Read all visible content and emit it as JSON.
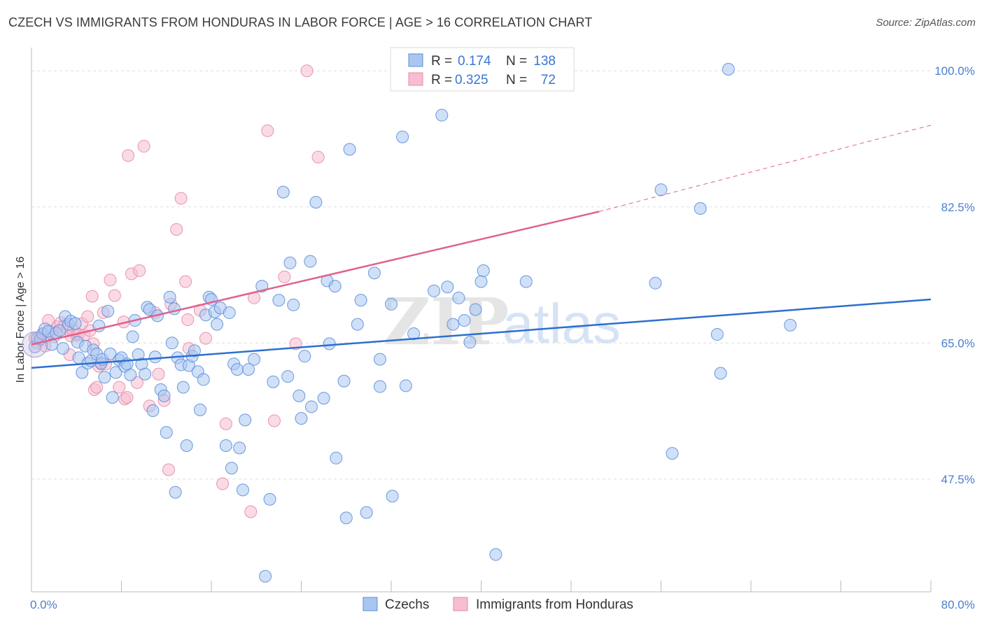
{
  "title": "CZECH VS IMMIGRANTS FROM HONDURAS IN LABOR FORCE | AGE > 16 CORRELATION CHART",
  "source": "Source: ZipAtlas.com",
  "watermark": {
    "zip": "ZIP",
    "atlas": "atlas"
  },
  "colors": {
    "blue_fill": "#a9c6f0",
    "blue_stroke": "#5b8fdb",
    "blue_line": "#2c6fce",
    "pink_fill": "#f6bed0",
    "pink_stroke": "#e68aa8",
    "pink_line": "#e0618d",
    "grid": "#dddddd",
    "axis_text": "#4a7fd0"
  },
  "stats_legend": {
    "rows": [
      {
        "r_label": "R =",
        "r_value": "0.174",
        "n_label": "N =",
        "n_value": "138",
        "series": "czechs"
      },
      {
        "r_label": "R =",
        "r_value": "0.325",
        "n_label": "N =",
        "n_value": "72",
        "series": "honduras"
      }
    ]
  },
  "chart_data": {
    "type": "scatter",
    "title": "CZECH VS IMMIGRANTS FROM HONDURAS IN LABOR FORCE | AGE > 16 CORRELATION CHART",
    "xlabel": "",
    "ylabel": "In Labor Force | Age > 16",
    "xlim": [
      0,
      80
    ],
    "ylim": [
      33,
      102
    ],
    "x_tick_labels": [
      "0.0%",
      "80.0%"
    ],
    "y_ticks": [
      47.5,
      65.0,
      82.5,
      100.0
    ],
    "y_tick_labels": [
      "47.5%",
      "65.0%",
      "82.5%",
      "100.0%"
    ],
    "grid": true,
    "legend_position": "bottom",
    "series": [
      {
        "name": "Czechs",
        "color": "#5b8fdb",
        "trend": {
          "x": [
            0,
            80
          ],
          "y": [
            61.8,
            70.6
          ]
        },
        "points": [
          [
            0.3,
            64.5
          ],
          [
            0.5,
            65.6
          ],
          [
            0.8,
            65.5
          ],
          [
            1.0,
            66.2
          ],
          [
            1.2,
            66.8
          ],
          [
            1.5,
            66.5
          ],
          [
            1.8,
            64.8
          ],
          [
            2.2,
            66.3
          ],
          [
            2.5,
            66.6
          ],
          [
            2.8,
            64.3
          ],
          [
            3.0,
            68.4
          ],
          [
            3.3,
            67.4
          ],
          [
            3.5,
            67.8
          ],
          [
            3.9,
            67.5
          ],
          [
            4.1,
            65.1
          ],
          [
            4.2,
            63.1
          ],
          [
            4.5,
            61.2
          ],
          [
            4.8,
            64.6
          ],
          [
            5.0,
            62.4
          ],
          [
            5.3,
            62.7
          ],
          [
            5.5,
            64.1
          ],
          [
            5.8,
            63.6
          ],
          [
            6.0,
            67.2
          ],
          [
            6.2,
            62.4
          ],
          [
            6.3,
            62.9
          ],
          [
            6.5,
            60.6
          ],
          [
            6.8,
            69.1
          ],
          [
            7.0,
            63.6
          ],
          [
            7.2,
            58.0
          ],
          [
            7.5,
            61.2
          ],
          [
            7.8,
            62.8
          ],
          [
            8.0,
            63.1
          ],
          [
            8.3,
            62.0
          ],
          [
            8.5,
            62.3
          ],
          [
            8.8,
            60.9
          ],
          [
            9.0,
            65.8
          ],
          [
            9.2,
            67.9
          ],
          [
            9.5,
            63.5
          ],
          [
            9.8,
            62.3
          ],
          [
            10.1,
            61.0
          ],
          [
            10.3,
            69.6
          ],
          [
            10.5,
            69.3
          ],
          [
            10.8,
            56.3
          ],
          [
            11.0,
            63.2
          ],
          [
            11.2,
            68.5
          ],
          [
            11.5,
            59.0
          ],
          [
            11.8,
            58.2
          ],
          [
            12.0,
            53.5
          ],
          [
            12.3,
            70.9
          ],
          [
            12.5,
            65.0
          ],
          [
            12.7,
            69.4
          ],
          [
            12.8,
            45.8
          ],
          [
            13.0,
            63.1
          ],
          [
            13.3,
            62.2
          ],
          [
            13.5,
            59.3
          ],
          [
            13.8,
            51.8
          ],
          [
            14.0,
            62.1
          ],
          [
            14.3,
            63.3
          ],
          [
            14.5,
            64.0
          ],
          [
            14.8,
            61.3
          ],
          [
            15.0,
            56.4
          ],
          [
            15.3,
            60.3
          ],
          [
            15.5,
            68.6
          ],
          [
            15.8,
            70.9
          ],
          [
            16.0,
            70.6
          ],
          [
            16.3,
            69.0
          ],
          [
            16.5,
            67.4
          ],
          [
            16.8,
            69.5
          ],
          [
            17.3,
            51.8
          ],
          [
            17.6,
            68.9
          ],
          [
            17.8,
            48.9
          ],
          [
            18.0,
            62.3
          ],
          [
            18.3,
            61.6
          ],
          [
            18.5,
            51.5
          ],
          [
            18.8,
            46.1
          ],
          [
            19.0,
            55.1
          ],
          [
            19.3,
            61.6
          ],
          [
            19.8,
            62.9
          ],
          [
            20.5,
            72.3
          ],
          [
            20.8,
            35.0
          ],
          [
            21.2,
            44.9
          ],
          [
            21.5,
            60.0
          ],
          [
            22.0,
            70.5
          ],
          [
            22.4,
            84.4
          ],
          [
            22.8,
            60.7
          ],
          [
            23.0,
            75.3
          ],
          [
            23.3,
            69.9
          ],
          [
            23.8,
            58.2
          ],
          [
            24.0,
            55.3
          ],
          [
            24.3,
            63.3
          ],
          [
            24.8,
            75.5
          ],
          [
            24.9,
            56.8
          ],
          [
            25.3,
            83.1
          ],
          [
            26.0,
            57.9
          ],
          [
            26.3,
            73.0
          ],
          [
            26.5,
            64.9
          ],
          [
            27.0,
            72.3
          ],
          [
            27.1,
            50.2
          ],
          [
            27.8,
            60.1
          ],
          [
            28.0,
            42.5
          ],
          [
            28.3,
            89.9
          ],
          [
            29.0,
            67.4
          ],
          [
            29.3,
            70.5
          ],
          [
            29.8,
            43.2
          ],
          [
            30.5,
            74.0
          ],
          [
            31.0,
            59.4
          ],
          [
            31.0,
            62.9
          ],
          [
            32.0,
            70.0
          ],
          [
            32.1,
            45.3
          ],
          [
            33.0,
            91.5
          ],
          [
            33.3,
            59.5
          ],
          [
            34.0,
            66.2
          ],
          [
            35.8,
            71.7
          ],
          [
            36.5,
            94.3
          ],
          [
            37.0,
            72.2
          ],
          [
            37.5,
            67.4
          ],
          [
            38.0,
            70.8
          ],
          [
            38.5,
            67.9
          ],
          [
            39.0,
            65.1
          ],
          [
            39.5,
            69.3
          ],
          [
            40.0,
            72.9
          ],
          [
            40.2,
            74.3
          ],
          [
            41.3,
            37.8
          ],
          [
            44.0,
            72.9
          ],
          [
            55.5,
            72.7
          ],
          [
            56.0,
            84.7
          ],
          [
            57.0,
            50.8
          ],
          [
            59.5,
            82.3
          ],
          [
            61.0,
            66.1
          ],
          [
            61.3,
            61.1
          ],
          [
            62.0,
            100.2
          ],
          [
            67.5,
            67.3
          ]
        ]
      },
      {
        "name": "Immigrants from Honduras",
        "color": "#e68aa8",
        "trend": {
          "x": [
            0,
            50.5
          ],
          "y": [
            64.8,
            81.9
          ]
        },
        "trend_dashed": {
          "x": [
            50.5,
            80
          ],
          "y": [
            81.9,
            93.0
          ]
        },
        "points": [
          [
            0.3,
            65.6
          ],
          [
            0.5,
            65.0
          ],
          [
            0.8,
            65.8
          ],
          [
            1.0,
            66.1
          ],
          [
            1.2,
            64.6
          ],
          [
            1.5,
            67.9
          ],
          [
            1.8,
            66.5
          ],
          [
            2.0,
            65.8
          ],
          [
            2.3,
            67.1
          ],
          [
            2.6,
            67.6
          ],
          [
            2.9,
            67.2
          ],
          [
            3.2,
            66.8
          ],
          [
            3.4,
            63.5
          ],
          [
            3.5,
            65.9
          ],
          [
            3.7,
            66.6
          ],
          [
            4.0,
            66.0
          ],
          [
            4.2,
            66.1
          ],
          [
            4.5,
            67.5
          ],
          [
            4.7,
            66.0
          ],
          [
            5.0,
            68.4
          ],
          [
            5.2,
            66.6
          ],
          [
            5.4,
            71.0
          ],
          [
            5.5,
            64.9
          ],
          [
            5.6,
            59.0
          ],
          [
            5.8,
            59.3
          ],
          [
            6.0,
            62.0
          ],
          [
            6.2,
            62.3
          ],
          [
            6.4,
            68.9
          ],
          [
            6.6,
            62.3
          ],
          [
            7.0,
            73.1
          ],
          [
            7.4,
            71.1
          ],
          [
            7.8,
            59.3
          ],
          [
            8.2,
            67.7
          ],
          [
            8.3,
            57.8
          ],
          [
            8.5,
            58.0
          ],
          [
            8.6,
            89.1
          ],
          [
            8.9,
            73.9
          ],
          [
            9.4,
            59.9
          ],
          [
            9.6,
            74.3
          ],
          [
            10.0,
            90.3
          ],
          [
            10.5,
            56.9
          ],
          [
            11.0,
            68.9
          ],
          [
            11.3,
            61.0
          ],
          [
            11.8,
            57.6
          ],
          [
            12.2,
            48.7
          ],
          [
            12.4,
            70.0
          ],
          [
            12.9,
            79.6
          ],
          [
            13.3,
            83.6
          ],
          [
            13.7,
            72.9
          ],
          [
            13.9,
            68.0
          ],
          [
            14.0,
            64.3
          ],
          [
            15.0,
            69.2
          ],
          [
            15.5,
            65.6
          ],
          [
            17.0,
            46.9
          ],
          [
            17.3,
            54.6
          ],
          [
            19.5,
            43.3
          ],
          [
            19.8,
            70.8
          ],
          [
            21.0,
            92.3
          ],
          [
            21.6,
            55.0
          ],
          [
            22.5,
            73.5
          ],
          [
            23.5,
            64.9
          ],
          [
            24.5,
            100.0
          ],
          [
            25.5,
            88.9
          ]
        ]
      }
    ]
  },
  "bottom_legend": {
    "items": [
      {
        "label": "Czechs",
        "series": "czechs"
      },
      {
        "label": "Immigrants from Honduras",
        "series": "honduras"
      }
    ]
  }
}
